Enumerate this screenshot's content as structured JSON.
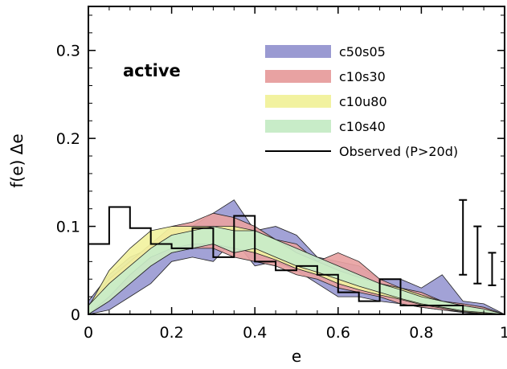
{
  "chart_data": {
    "type": "area",
    "xlabel": "e",
    "ylabel": "f(e)  Δe",
    "annotation": "active",
    "xlim": [
      0,
      1
    ],
    "ylim": [
      0,
      0.35
    ],
    "x_ticks": [
      0,
      0.2,
      0.4,
      0.6,
      0.8,
      1
    ],
    "x_tick_labels": [
      "0",
      "0.2",
      "0.4",
      "0.6",
      "0.8",
      "1"
    ],
    "y_ticks": [
      0,
      0.1,
      0.2,
      0.3
    ],
    "y_tick_labels": [
      "0",
      "0.1",
      "0.2",
      "0.3"
    ],
    "grid": false,
    "legend_position": "top-right",
    "series": [
      {
        "name": "c50s05",
        "color": "#9a9ad2",
        "x": [
          0,
          0.05,
          0.1,
          0.15,
          0.2,
          0.25,
          0.3,
          0.35,
          0.4,
          0.45,
          0.5,
          0.55,
          0.6,
          0.65,
          0.7,
          0.75,
          0.8,
          0.85,
          0.9,
          0.95,
          1
        ],
        "upper": [
          0.015,
          0.045,
          0.065,
          0.075,
          0.09,
          0.1,
          0.115,
          0.13,
          0.095,
          0.1,
          0.09,
          0.065,
          0.06,
          0.055,
          0.04,
          0.04,
          0.03,
          0.045,
          0.015,
          0.012,
          0
        ],
        "lower": [
          0,
          0.005,
          0.02,
          0.035,
          0.06,
          0.065,
          0.06,
          0.085,
          0.055,
          0.06,
          0.05,
          0.035,
          0.02,
          0.02,
          0.015,
          0.012,
          0.008,
          0.005,
          0.002,
          0,
          0
        ]
      },
      {
        "name": "c10s30",
        "color": "#e8a2a2",
        "x": [
          0,
          0.05,
          0.1,
          0.15,
          0.2,
          0.25,
          0.3,
          0.35,
          0.4,
          0.45,
          0.5,
          0.55,
          0.6,
          0.65,
          0.7,
          0.75,
          0.8,
          0.85,
          0.9,
          0.95,
          1
        ],
        "upper": [
          0.01,
          0.04,
          0.06,
          0.08,
          0.1,
          0.105,
          0.115,
          0.11,
          0.1,
          0.085,
          0.08,
          0.06,
          0.07,
          0.06,
          0.04,
          0.03,
          0.025,
          0.015,
          0.012,
          0.008,
          0
        ],
        "lower": [
          0,
          0.015,
          0.035,
          0.055,
          0.07,
          0.075,
          0.075,
          0.065,
          0.06,
          0.055,
          0.045,
          0.04,
          0.03,
          0.025,
          0.02,
          0.012,
          0.008,
          0.005,
          0.003,
          0,
          0
        ]
      },
      {
        "name": "c10u80",
        "color": "#f2f2a0",
        "x": [
          0,
          0.05,
          0.1,
          0.15,
          0.2,
          0.25,
          0.3,
          0.35,
          0.4,
          0.45,
          0.5,
          0.55,
          0.6,
          0.65,
          0.7,
          0.75,
          0.8,
          0.85,
          0.9,
          0.95,
          1
        ],
        "upper": [
          0.008,
          0.05,
          0.075,
          0.095,
          0.1,
          0.1,
          0.1,
          0.1,
          0.095,
          0.085,
          0.07,
          0.06,
          0.05,
          0.042,
          0.035,
          0.03,
          0.022,
          0.015,
          0.01,
          0.006,
          0
        ],
        "lower": [
          0,
          0.02,
          0.045,
          0.065,
          0.075,
          0.08,
          0.08,
          0.075,
          0.07,
          0.062,
          0.052,
          0.045,
          0.035,
          0.028,
          0.022,
          0.017,
          0.011,
          0.007,
          0.003,
          0.001,
          0
        ]
      },
      {
        "name": "c10s40",
        "color": "#c8ecc8",
        "x": [
          0,
          0.05,
          0.1,
          0.15,
          0.2,
          0.25,
          0.3,
          0.35,
          0.4,
          0.45,
          0.5,
          0.55,
          0.6,
          0.65,
          0.7,
          0.75,
          0.8,
          0.85,
          0.9,
          0.95,
          1
        ],
        "upper": [
          0.01,
          0.035,
          0.055,
          0.075,
          0.09,
          0.095,
          0.1,
          0.095,
          0.095,
          0.085,
          0.075,
          0.065,
          0.055,
          0.045,
          0.035,
          0.028,
          0.02,
          0.015,
          0.01,
          0.006,
          0
        ],
        "lower": [
          0,
          0.015,
          0.035,
          0.055,
          0.07,
          0.075,
          0.08,
          0.07,
          0.075,
          0.065,
          0.055,
          0.048,
          0.04,
          0.032,
          0.025,
          0.018,
          0.012,
          0.008,
          0.004,
          0.002,
          0
        ]
      },
      {
        "name": "Observed (P>20d)",
        "color": "#000000",
        "type": "step",
        "bin_edges": [
          0,
          0.05,
          0.1,
          0.15,
          0.2,
          0.25,
          0.3,
          0.35,
          0.4,
          0.45,
          0.5,
          0.55,
          0.6,
          0.65,
          0.7,
          0.75,
          0.8,
          0.85,
          0.9,
          0.95,
          1
        ],
        "values": [
          0.08,
          0.122,
          0.098,
          0.08,
          0.075,
          0.098,
          0.065,
          0.112,
          0.06,
          0.05,
          0.055,
          0.045,
          0.025,
          0.015,
          0.04,
          0.01,
          0.01,
          0.01,
          0.0,
          0.0
        ]
      }
    ],
    "error_bars": [
      {
        "x": 0.9,
        "low": 0.045,
        "high": 0.13
      },
      {
        "x": 0.935,
        "low": 0.035,
        "high": 0.1
      },
      {
        "x": 0.97,
        "low": 0.033,
        "high": 0.07
      }
    ]
  }
}
